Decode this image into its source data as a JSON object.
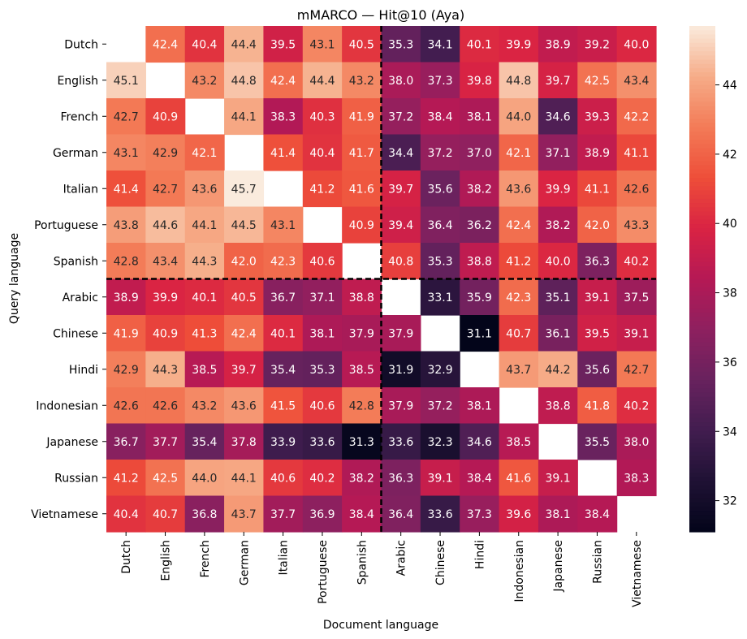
{
  "chart_data": {
    "type": "heatmap",
    "title": "mMARCO — Hit@10 (Aya)",
    "xlabel": "Document language",
    "ylabel": "Query language",
    "x_categories": [
      "Dutch",
      "English",
      "French",
      "German",
      "Italian",
      "Portuguese",
      "Spanish",
      "Arabic",
      "Chinese",
      "Hindi",
      "Indonesian",
      "Japanese",
      "Russian",
      "Vietnamese"
    ],
    "y_categories": [
      "Dutch",
      "English",
      "French",
      "German",
      "Italian",
      "Portuguese",
      "Spanish",
      "Arabic",
      "Chinese",
      "Hindi",
      "Indonesian",
      "Japanese",
      "Russian",
      "Vietnamese"
    ],
    "values": [
      [
        null,
        42.4,
        40.4,
        44.4,
        39.5,
        43.1,
        40.5,
        35.3,
        34.1,
        40.1,
        39.9,
        38.9,
        39.2,
        40.0
      ],
      [
        45.1,
        null,
        43.2,
        44.8,
        42.4,
        44.4,
        43.2,
        38.0,
        37.3,
        39.8,
        44.8,
        39.7,
        42.5,
        43.4
      ],
      [
        42.7,
        40.9,
        null,
        44.1,
        38.3,
        40.3,
        41.9,
        37.2,
        38.4,
        38.1,
        44.0,
        34.6,
        39.3,
        42.2
      ],
      [
        43.1,
        42.9,
        42.1,
        null,
        41.4,
        40.4,
        41.7,
        34.4,
        37.2,
        37.0,
        42.1,
        37.1,
        38.9,
        41.1
      ],
      [
        41.4,
        42.7,
        43.6,
        45.7,
        null,
        41.2,
        41.6,
        39.7,
        35.6,
        38.2,
        43.6,
        39.9,
        41.1,
        42.6
      ],
      [
        43.8,
        44.6,
        44.1,
        44.5,
        43.1,
        null,
        40.9,
        39.4,
        36.4,
        36.2,
        42.4,
        38.2,
        42.0,
        43.3
      ],
      [
        42.8,
        43.4,
        44.3,
        42.0,
        42.3,
        40.6,
        null,
        40.8,
        35.3,
        38.8,
        41.2,
        40.0,
        36.3,
        40.2
      ],
      [
        38.9,
        39.9,
        40.1,
        40.5,
        36.7,
        37.1,
        38.8,
        null,
        33.1,
        35.9,
        42.3,
        35.1,
        39.1,
        37.5
      ],
      [
        41.9,
        40.9,
        41.3,
        42.4,
        40.1,
        38.1,
        37.9,
        37.9,
        null,
        31.1,
        40.7,
        36.1,
        39.5,
        39.1
      ],
      [
        42.9,
        44.3,
        38.5,
        39.7,
        35.4,
        35.3,
        38.5,
        31.9,
        32.9,
        null,
        43.7,
        44.2,
        35.6,
        42.7
      ],
      [
        42.6,
        42.6,
        43.2,
        43.6,
        41.5,
        40.6,
        42.8,
        37.9,
        37.2,
        38.1,
        null,
        38.8,
        41.8,
        40.2
      ],
      [
        36.7,
        37.7,
        35.4,
        37.8,
        33.9,
        33.6,
        31.3,
        33.6,
        32.3,
        34.6,
        38.5,
        null,
        35.5,
        38.0
      ],
      [
        41.2,
        42.5,
        44.0,
        44.1,
        40.6,
        40.2,
        38.2,
        36.3,
        39.1,
        38.4,
        41.6,
        39.1,
        null,
        38.3
      ],
      [
        40.4,
        40.7,
        36.8,
        43.7,
        37.7,
        36.9,
        38.4,
        36.4,
        33.6,
        37.3,
        39.6,
        38.1,
        38.4,
        null
      ]
    ],
    "vmin": 31.1,
    "vmax": 45.7,
    "colorbar_ticks": [
      32,
      34,
      36,
      38,
      40,
      42,
      44
    ],
    "colormap": "rocket",
    "annotations": "cell values shown with one decimal",
    "separator_after_index": 7,
    "separator_style": "dashed black"
  }
}
